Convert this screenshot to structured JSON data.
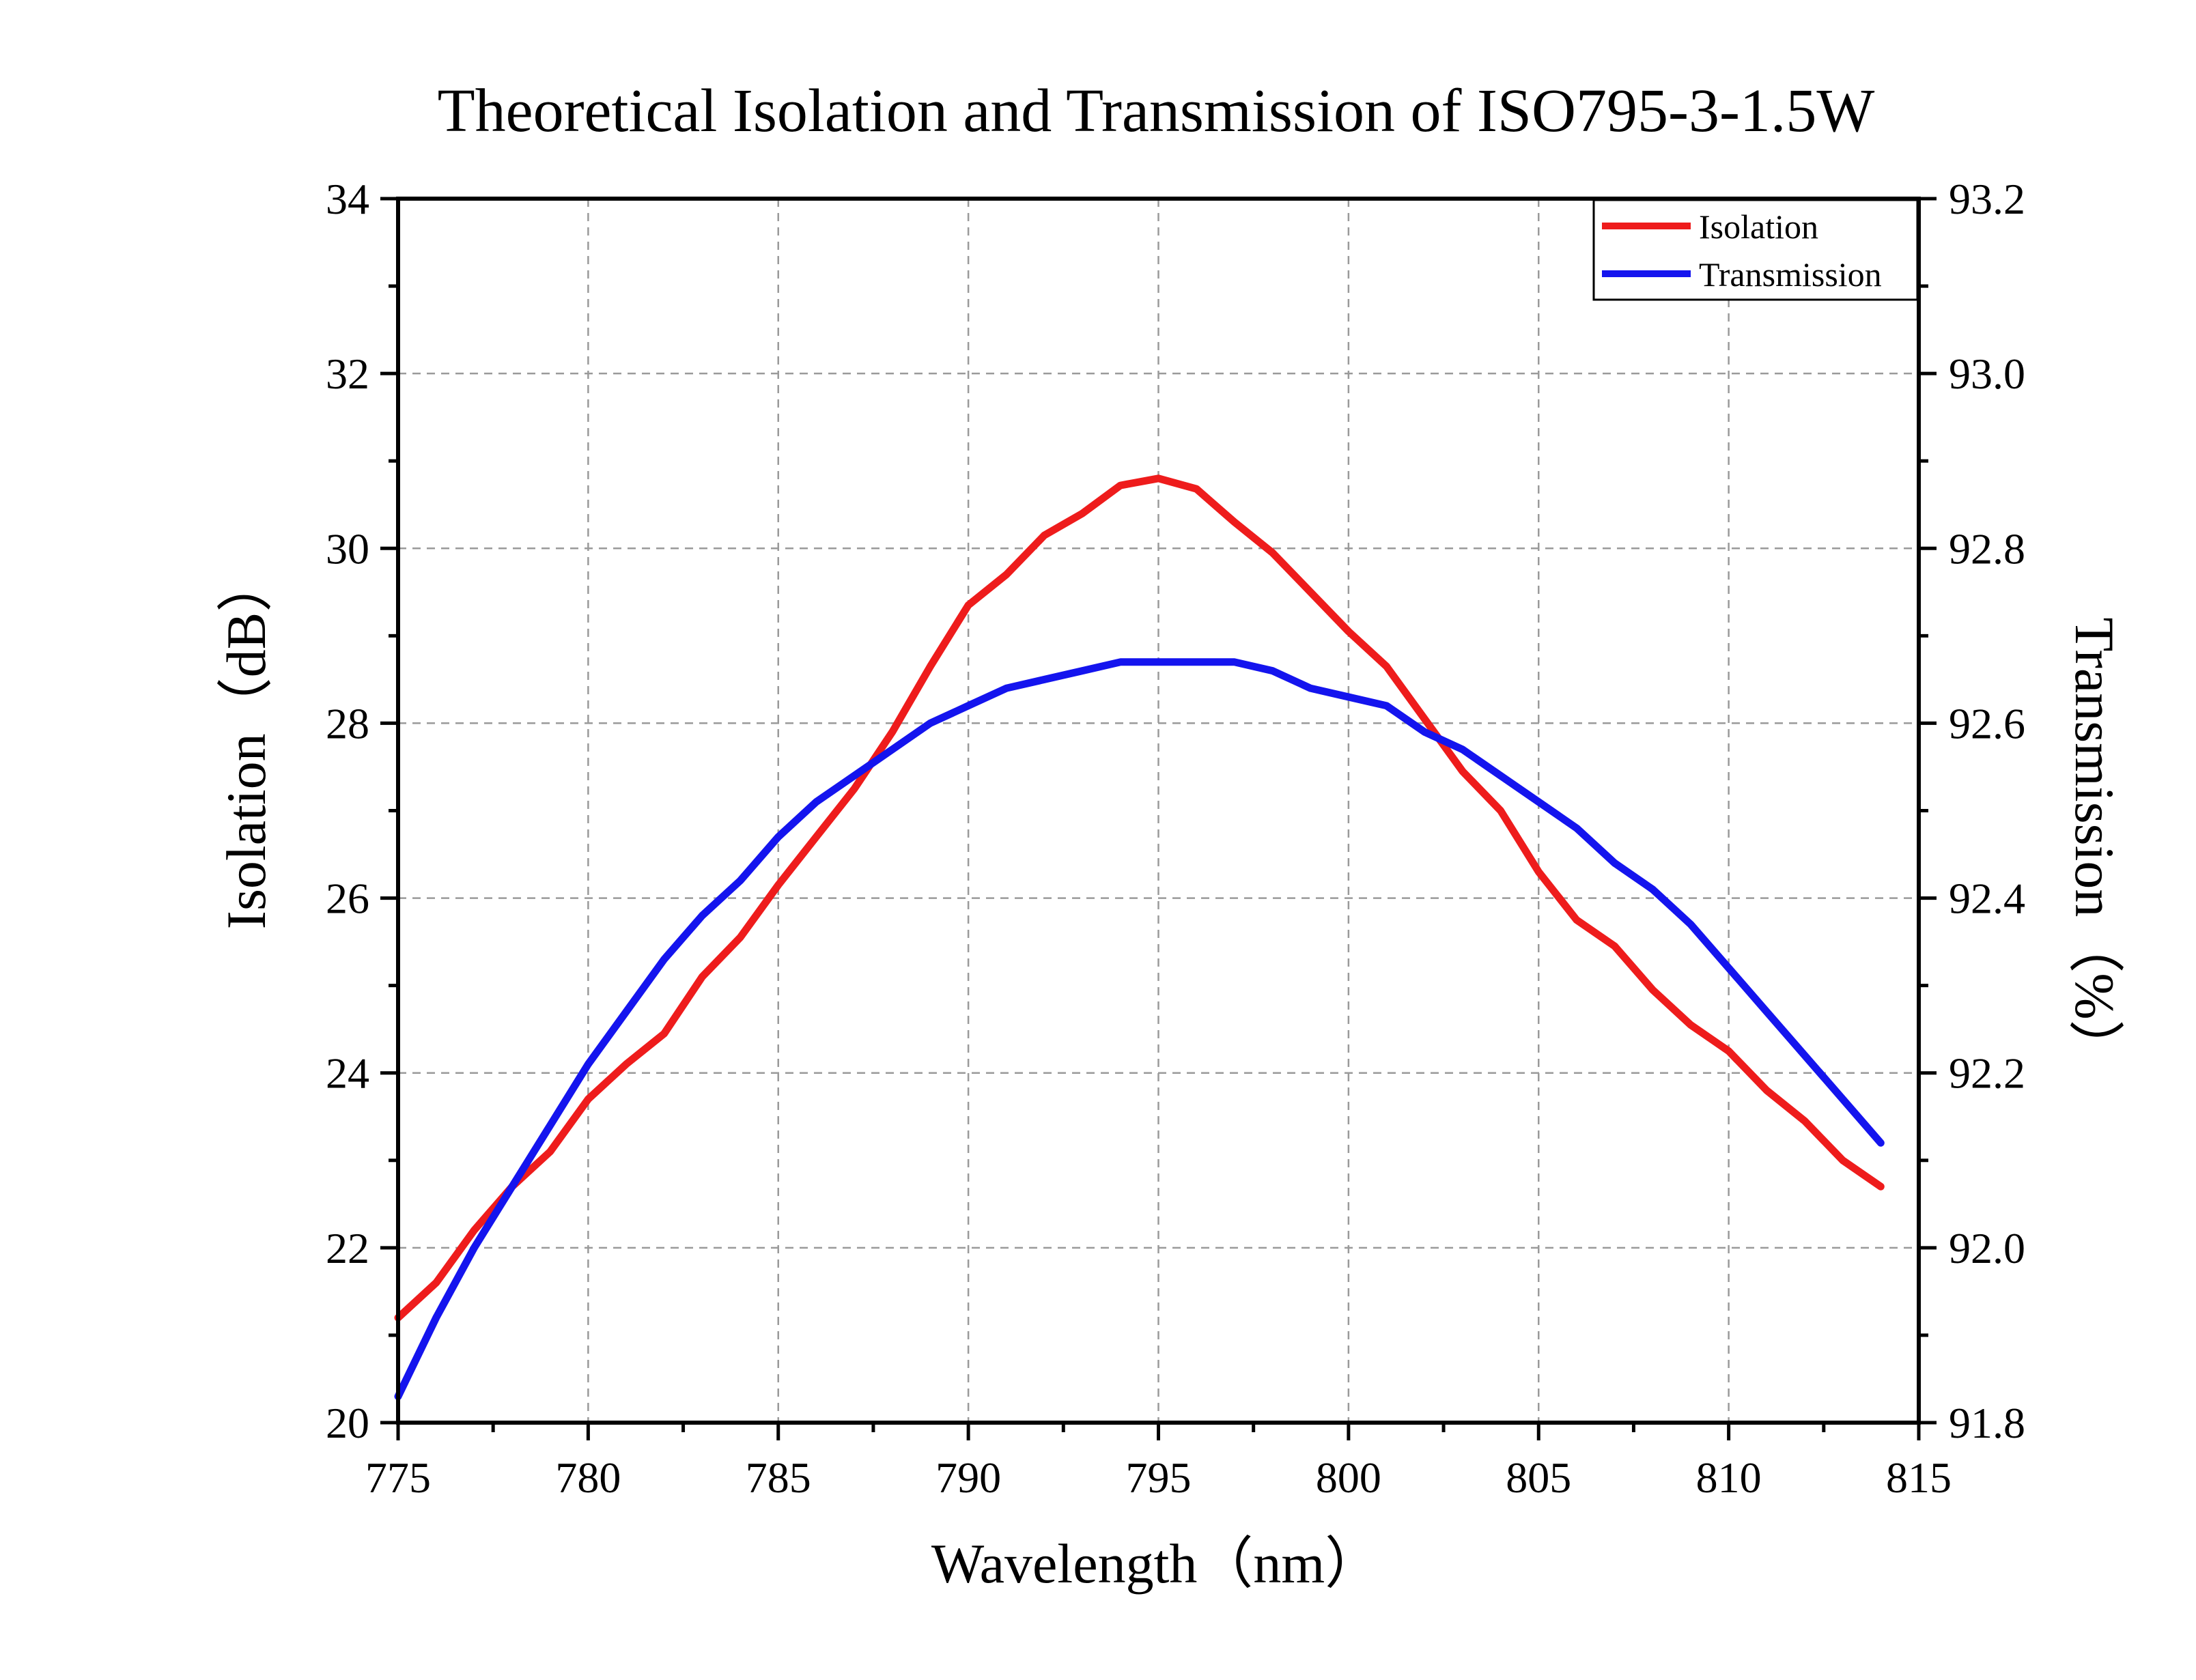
{
  "chart_data": {
    "type": "line",
    "title": "Theoretical Isolation and Transmission of ISO795-3-1.5W",
    "xlabel": "Wavelength（nm）",
    "ylabel_left": "Isolation（dB）",
    "ylabel_right": "Transmission（%）",
    "xlim": [
      775,
      815
    ],
    "ylim_left": [
      20,
      34
    ],
    "ylim_right": [
      91.8,
      93.2
    ],
    "x_ticks": [
      "775",
      "780",
      "785",
      "790",
      "795",
      "800",
      "805",
      "810",
      "815"
    ],
    "y_left_ticks": [
      "20",
      "22",
      "24",
      "26",
      "28",
      "30",
      "32",
      "34"
    ],
    "y_right_ticks": [
      "91.8",
      "92.0",
      "92.2",
      "92.4",
      "92.6",
      "92.8",
      "93.0",
      "93.2"
    ],
    "grid": true,
    "legend_position": "top-right",
    "x": [
      775,
      776,
      777,
      778,
      779,
      780,
      781,
      782,
      783,
      784,
      785,
      786,
      787,
      788,
      789,
      790,
      791,
      792,
      793,
      794,
      795,
      796,
      797,
      798,
      799,
      800,
      801,
      802,
      803,
      804,
      805,
      806,
      807,
      808,
      809,
      810,
      811,
      812,
      813,
      814
    ],
    "series": [
      {
        "name": "Isolation",
        "axis": "left",
        "color": "#ee1c1c",
        "values": [
          21.2,
          21.6,
          22.2,
          22.7,
          23.1,
          23.7,
          24.1,
          24.45,
          25.1,
          25.55,
          26.15,
          26.7,
          27.25,
          27.9,
          28.65,
          29.35,
          29.7,
          30.15,
          30.4,
          30.72,
          30.8,
          30.68,
          30.3,
          29.95,
          29.5,
          29.05,
          28.65,
          28.05,
          27.45,
          27.0,
          26.3,
          25.75,
          25.45,
          24.95,
          24.55,
          24.25,
          23.8,
          23.45,
          23.0,
          22.7
        ]
      },
      {
        "name": "Transmission",
        "axis": "right",
        "color": "#1414ee",
        "values": [
          91.83,
          91.92,
          92.0,
          92.07,
          92.14,
          92.21,
          92.27,
          92.33,
          92.38,
          92.42,
          92.47,
          92.51,
          92.54,
          92.57,
          92.6,
          92.62,
          92.64,
          92.65,
          92.66,
          92.67,
          92.67,
          92.67,
          92.67,
          92.66,
          92.64,
          92.63,
          92.62,
          92.59,
          92.57,
          92.54,
          92.51,
          92.48,
          92.44,
          92.41,
          92.37,
          92.32,
          92.27,
          92.22,
          92.17,
          92.12
        ]
      }
    ]
  }
}
